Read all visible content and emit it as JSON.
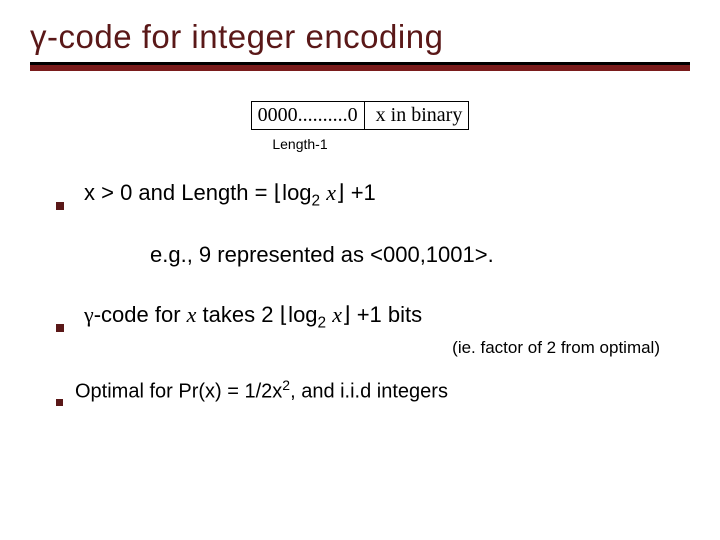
{
  "title": {
    "text_html": "γ-code for integer encoding",
    "color": "#5a1818",
    "fontsize": 33
  },
  "rule": {
    "top_color": "#000000",
    "bottom_color": "#7a1c1c"
  },
  "diagram": {
    "left_cell": "0000..........0",
    "right_cell": "x in binary",
    "caption": "Length-1"
  },
  "bullets": {
    "b1_html": "x > 0 and Length = ⌊log<sub>2</sub> <span class='ital'>x</span>⌋ +1",
    "example_html": "e.g., 9 represented as &lt;000,1001&gt;.",
    "b2_html": "<span class='gamma'>γ</span>-code for <span class='ital'>x</span> takes 2 ⌊log<sub>2</sub> <span class='ital'>x</span>⌋ +1 bits",
    "aside": "(ie. factor of 2 from optimal)",
    "b3_html": "Optimal for Pr(x) = 1/2x<sup>2</sup>, and i.i.d integers"
  },
  "style": {
    "bullet_color": "#5a1818",
    "body_fontsize": 22,
    "aside_fontsize": 17,
    "caption_fontsize": 14,
    "background": "#ffffff"
  }
}
